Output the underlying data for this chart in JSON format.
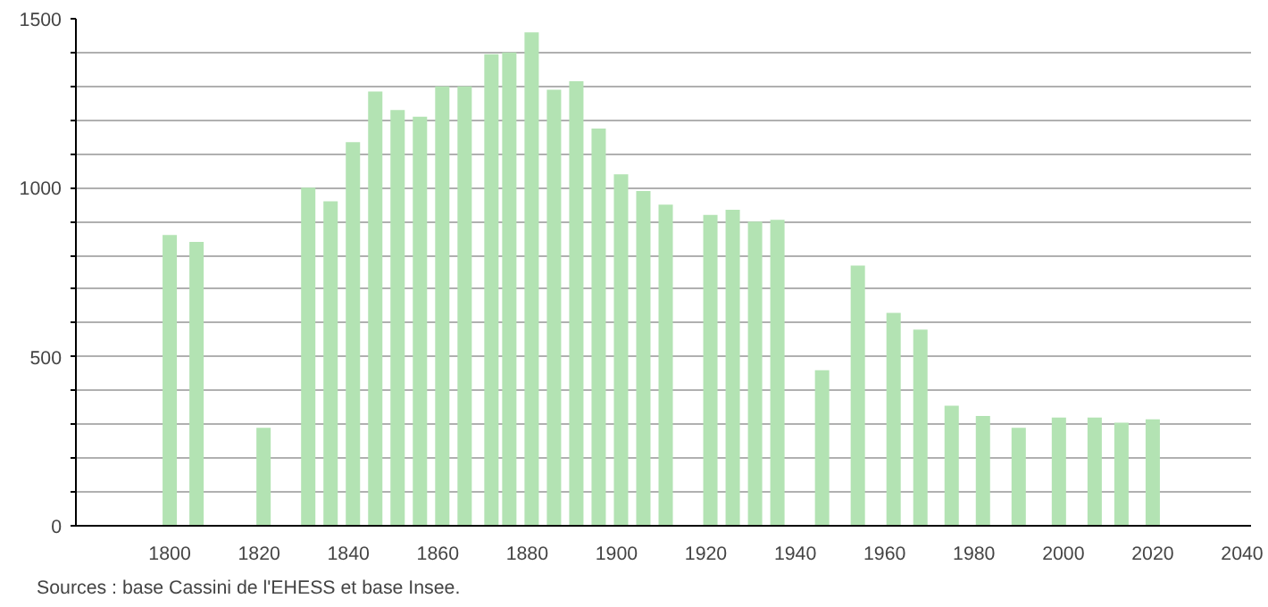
{
  "chart_data": {
    "type": "bar",
    "annotations": [
      "Sources : base Cassini de l'EHESS et base Insee."
    ],
    "x": [
      1800,
      1806,
      1821,
      1831,
      1836,
      1841,
      1846,
      1851,
      1856,
      1861,
      1866,
      1872,
      1876,
      1881,
      1886,
      1891,
      1896,
      1901,
      1906,
      1911,
      1921,
      1926,
      1931,
      1936,
      1946,
      1954,
      1962,
      1968,
      1975,
      1982,
      1990,
      1999,
      2007,
      2013,
      2020
    ],
    "values": [
      860,
      840,
      290,
      1000,
      960,
      1135,
      1285,
      1230,
      1210,
      1300,
      1300,
      1395,
      1400,
      1460,
      1290,
      1315,
      1175,
      1040,
      990,
      950,
      920,
      935,
      900,
      905,
      460,
      770,
      630,
      580,
      355,
      325,
      290,
      320,
      320,
      305,
      315
    ],
    "color": "#b3e3b3",
    "xlim": [
      1779,
      2042
    ],
    "ylim": [
      0,
      1500
    ],
    "xticks": [
      1800,
      1820,
      1840,
      1860,
      1880,
      1900,
      1920,
      1940,
      1960,
      1980,
      2000,
      2020,
      2040
    ],
    "yticks": [
      0,
      {
        "value": 100,
        "label": null
      },
      {
        "value": 200,
        "label": null
      },
      {
        "value": 300,
        "label": null
      },
      {
        "value": 400,
        "label": null
      },
      500,
      {
        "value": 600,
        "label": null
      },
      {
        "value": 700,
        "label": null
      },
      {
        "value": 800,
        "label": null
      },
      {
        "value": 900,
        "label": null
      },
      1000,
      {
        "value": 1100,
        "label": null
      },
      {
        "value": 1200,
        "label": null
      },
      {
        "value": 1300,
        "label": null
      },
      {
        "value": 1400,
        "label": null
      },
      1500
    ],
    "grid": "y"
  }
}
